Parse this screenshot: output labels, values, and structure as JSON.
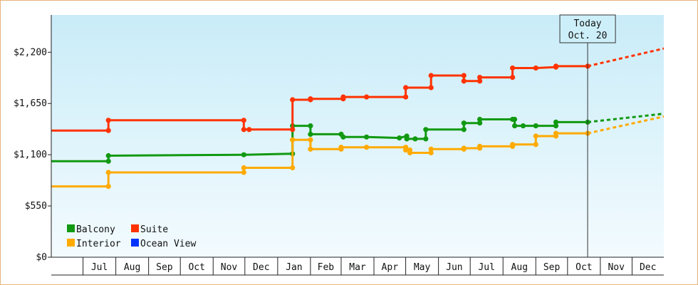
{
  "chart_data": {
    "type": "line",
    "step": true,
    "x_unit": "date",
    "yticks": [
      "$0",
      "$550",
      "$1,100",
      "$1,650",
      "$2,200"
    ],
    "ytick_values": [
      0,
      550,
      1100,
      1650,
      2200
    ],
    "ylim": [
      0,
      2600
    ],
    "xlim": [
      "2015-06-01",
      "2016-12-31"
    ],
    "months": [
      "Jul",
      "Aug",
      "Sep",
      "Oct",
      "Nov",
      "Dec",
      "Jan",
      "Feb",
      "Mar",
      "Apr",
      "May",
      "Jun",
      "Jul",
      "Aug",
      "Sep",
      "Oct",
      "Nov",
      "Dec"
    ],
    "month_starts": [
      "2015-07-01",
      "2015-08-01",
      "2015-09-01",
      "2015-10-01",
      "2015-11-01",
      "2015-12-01",
      "2016-01-01",
      "2016-02-01",
      "2016-03-01",
      "2016-04-01",
      "2016-05-01",
      "2016-06-01",
      "2016-07-01",
      "2016-08-01",
      "2016-09-01",
      "2016-10-01",
      "2016-11-01",
      "2016-12-01"
    ],
    "today": {
      "line1": "Today",
      "line2": "Oct. 20",
      "date": "2016-10-20"
    },
    "grid": false,
    "legend_position": "bottom-left",
    "series": [
      {
        "name": "Balcony",
        "color": "#119911",
        "points": [
          [
            "2015-06-01",
            1030
          ],
          [
            "2015-07-25",
            1030
          ],
          [
            "2015-07-25",
            1090
          ],
          [
            "2015-11-30",
            1100
          ],
          [
            "2016-01-15",
            1110
          ],
          [
            "2016-01-15",
            1410
          ],
          [
            "2016-02-01",
            1410
          ],
          [
            "2016-02-01",
            1320
          ],
          [
            "2016-03-01",
            1320
          ],
          [
            "2016-03-03",
            1290
          ],
          [
            "2016-03-25",
            1290
          ],
          [
            "2016-04-25",
            1280
          ],
          [
            "2016-05-02",
            1300
          ],
          [
            "2016-05-02",
            1270
          ],
          [
            "2016-05-10",
            1270
          ],
          [
            "2016-05-20",
            1270
          ],
          [
            "2016-05-20",
            1370
          ],
          [
            "2016-06-25",
            1370
          ],
          [
            "2016-06-25",
            1440
          ],
          [
            "2016-07-10",
            1440
          ],
          [
            "2016-07-10",
            1480
          ],
          [
            "2016-08-10",
            1480
          ],
          [
            "2016-08-12",
            1480
          ],
          [
            "2016-08-12",
            1410
          ],
          [
            "2016-08-20",
            1410
          ],
          [
            "2016-09-01",
            1410
          ],
          [
            "2016-09-20",
            1410
          ],
          [
            "2016-09-20",
            1450
          ],
          [
            "2016-10-20",
            1450
          ]
        ],
        "forecast": [
          [
            "2016-10-20",
            1450
          ],
          [
            "2016-12-31",
            1540
          ]
        ]
      },
      {
        "name": "Suite",
        "color": "#ff3300",
        "points": [
          [
            "2015-06-01",
            1360
          ],
          [
            "2015-07-25",
            1360
          ],
          [
            "2015-07-25",
            1470
          ],
          [
            "2015-11-30",
            1470
          ],
          [
            "2015-11-30",
            1370
          ],
          [
            "2015-12-05",
            1370
          ],
          [
            "2016-01-15",
            1370
          ],
          [
            "2016-01-15",
            1690
          ],
          [
            "2016-02-01",
            1690
          ],
          [
            "2016-02-01",
            1700
          ],
          [
            "2016-03-03",
            1700
          ],
          [
            "2016-03-03",
            1720
          ],
          [
            "2016-03-25",
            1720
          ],
          [
            "2016-05-01",
            1720
          ],
          [
            "2016-05-01",
            1820
          ],
          [
            "2016-05-25",
            1820
          ],
          [
            "2016-05-25",
            1950
          ],
          [
            "2016-06-25",
            1950
          ],
          [
            "2016-06-25",
            1890
          ],
          [
            "2016-07-10",
            1890
          ],
          [
            "2016-07-10",
            1930
          ],
          [
            "2016-08-10",
            1930
          ],
          [
            "2016-08-10",
            2030
          ],
          [
            "2016-09-01",
            2030
          ],
          [
            "2016-09-20",
            2040
          ],
          [
            "2016-09-20",
            2050
          ],
          [
            "2016-10-20",
            2050
          ]
        ],
        "forecast": [
          [
            "2016-10-20",
            2050
          ],
          [
            "2016-12-31",
            2240
          ]
        ]
      },
      {
        "name": "Interior",
        "color": "#ffaa00",
        "points": [
          [
            "2015-06-01",
            760
          ],
          [
            "2015-07-25",
            760
          ],
          [
            "2015-07-25",
            910
          ],
          [
            "2015-11-30",
            910
          ],
          [
            "2015-11-30",
            960
          ],
          [
            "2016-01-15",
            960
          ],
          [
            "2016-01-15",
            1260
          ],
          [
            "2016-02-01",
            1260
          ],
          [
            "2016-02-01",
            1160
          ],
          [
            "2016-03-01",
            1160
          ],
          [
            "2016-03-01",
            1180
          ],
          [
            "2016-03-25",
            1180
          ],
          [
            "2016-05-01",
            1180
          ],
          [
            "2016-05-01",
            1150
          ],
          [
            "2016-05-05",
            1150
          ],
          [
            "2016-05-05",
            1120
          ],
          [
            "2016-05-25",
            1120
          ],
          [
            "2016-05-25",
            1160
          ],
          [
            "2016-06-25",
            1160
          ],
          [
            "2016-06-25",
            1170
          ],
          [
            "2016-07-10",
            1170
          ],
          [
            "2016-07-10",
            1190
          ],
          [
            "2016-08-10",
            1190
          ],
          [
            "2016-08-10",
            1210
          ],
          [
            "2016-09-01",
            1210
          ],
          [
            "2016-09-01",
            1300
          ],
          [
            "2016-09-20",
            1300
          ],
          [
            "2016-09-20",
            1330
          ],
          [
            "2016-10-20",
            1330
          ]
        ],
        "forecast": [
          [
            "2016-10-20",
            1330
          ],
          [
            "2016-12-31",
            1510
          ]
        ]
      },
      {
        "name": "Ocean View",
        "color": "#0033ff",
        "points": [],
        "forecast": []
      }
    ]
  }
}
